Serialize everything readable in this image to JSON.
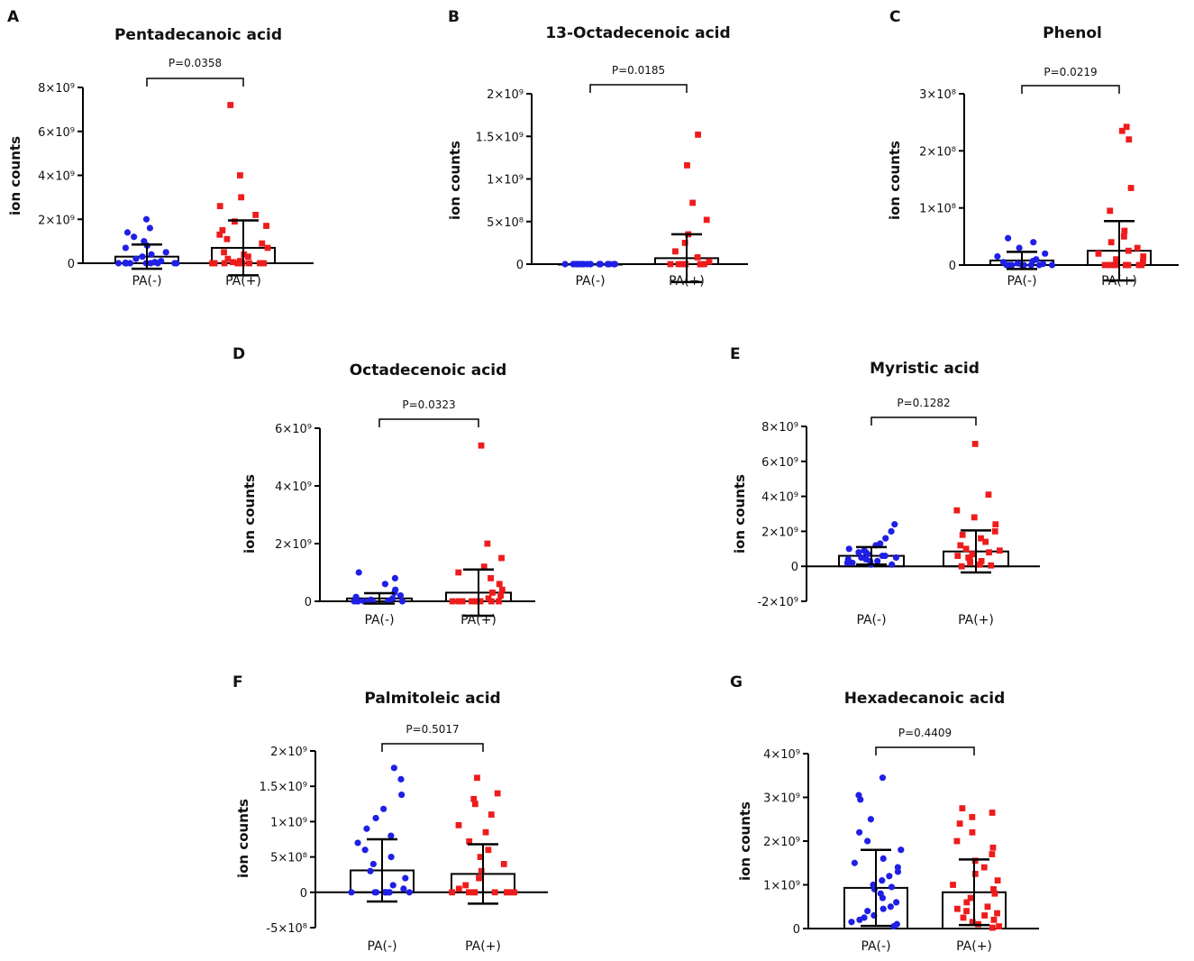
{
  "figure_title": "",
  "ion_unit_label": "ion counts",
  "colors": {
    "neg": "#1f1fe6",
    "pos": "#ee1c1c",
    "axis": "#000000"
  },
  "chart_data": [
    {
      "panel": "A",
      "type": "scatter",
      "title": "Pentadecanoic acid",
      "p_value": "P=0.0358",
      "ylabel": "ion counts",
      "categories": [
        "PA(-)",
        "PA(+)"
      ],
      "ylim": [
        0,
        8000000000.0
      ],
      "yticks": [
        {
          "value": 0,
          "label": "0"
        },
        {
          "value": 2000000000.0,
          "label": "2×10⁹"
        },
        {
          "value": 4000000000.0,
          "label": "4×10⁹"
        },
        {
          "value": 6000000000.0,
          "label": "6×10⁹"
        },
        {
          "value": 8000000000.0,
          "label": "8×10⁹"
        }
      ],
      "series": [
        {
          "name": "PA(-)",
          "mean": 300000000.0,
          "sd": 550000000.0,
          "values": [
            2000000000.0,
            1600000000.0,
            1400000000.0,
            1200000000.0,
            1000000000.0,
            800000000.0,
            700000000.0,
            500000000.0,
            400000000.0,
            300000000.0,
            200000000.0,
            100000000.0,
            50000000.0,
            20000000.0,
            0,
            0,
            0,
            0,
            0,
            0,
            0,
            0,
            0,
            0
          ]
        },
        {
          "name": "PA(+)",
          "mean": 700000000.0,
          "sd": 1250000000.0,
          "values": [
            7200000000.0,
            4000000000.0,
            3000000000.0,
            2600000000.0,
            2200000000.0,
            1900000000.0,
            1700000000.0,
            1500000000.0,
            1300000000.0,
            1100000000.0,
            900000000.0,
            700000000.0,
            500000000.0,
            400000000.0,
            300000000.0,
            200000000.0,
            100000000.0,
            50000000.0,
            0,
            0,
            0,
            0,
            0,
            0,
            0,
            0,
            0,
            0
          ]
        }
      ]
    },
    {
      "panel": "B",
      "type": "scatter",
      "title": "13-Octadecenoic acid",
      "p_value": "P=0.0185",
      "ylabel": "ion counts",
      "categories": [
        "PA(-)",
        "PA(+)"
      ],
      "ylim": [
        0,
        2000000000.0
      ],
      "yticks": [
        {
          "value": 0,
          "label": "0"
        },
        {
          "value": 500000000.0,
          "label": "5×10⁸"
        },
        {
          "value": 1000000000.0,
          "label": "1×10⁹"
        },
        {
          "value": 1500000000.0,
          "label": "1.5×10⁹"
        },
        {
          "value": 2000000000.0,
          "label": "2×10⁹"
        }
      ],
      "series": [
        {
          "name": "PA(-)",
          "mean": 0,
          "sd": 0,
          "values": [
            0,
            0,
            0,
            0,
            0,
            0,
            0,
            0,
            0,
            0,
            0,
            0,
            0,
            0,
            0,
            0,
            0,
            0,
            0,
            0
          ]
        },
        {
          "name": "PA(+)",
          "mean": 70000000.0,
          "sd": 280000000.0,
          "values": [
            1520000000.0,
            1160000000.0,
            720000000.0,
            520000000.0,
            350000000.0,
            250000000.0,
            150000000.0,
            80000000.0,
            30000000.0,
            0,
            0,
            0,
            0,
            0,
            0,
            0,
            0,
            0,
            0,
            0
          ]
        }
      ]
    },
    {
      "panel": "C",
      "type": "scatter",
      "title": "Phenol",
      "p_value": "P=0.0219",
      "ylabel": "ion counts",
      "categories": [
        "PA(-)",
        "PA(+)"
      ],
      "ylim": [
        0,
        300000000.0
      ],
      "yticks": [
        {
          "value": 0,
          "label": "0"
        },
        {
          "value": 100000000.0,
          "label": "1×10⁸"
        },
        {
          "value": 200000000.0,
          "label": "2×10⁸"
        },
        {
          "value": 300000000.0,
          "label": "3×10⁸"
        }
      ],
      "series": [
        {
          "name": "PA(-)",
          "mean": 8000000.0,
          "sd": 15000000.0,
          "values": [
            47000000.0,
            40000000.0,
            30000000.0,
            20000000.0,
            15000000.0,
            10000000.0,
            7000000.0,
            5000000.0,
            3000000.0,
            2000000.0,
            0,
            0,
            0,
            0,
            0,
            0,
            0,
            0,
            0,
            0
          ]
        },
        {
          "name": "PA(+)",
          "mean": 25000000.0,
          "sd": 52000000.0,
          "values": [
            242000000.0,
            235000000.0,
            220000000.0,
            135000000.0,
            95000000.0,
            60000000.0,
            50000000.0,
            40000000.0,
            30000000.0,
            25000000.0,
            20000000.0,
            15000000.0,
            10000000.0,
            5000000.0,
            0,
            0,
            0,
            0,
            0,
            0,
            0,
            0
          ]
        }
      ]
    },
    {
      "panel": "D",
      "type": "scatter",
      "title": "Octadecenoic acid",
      "p_value": "P=0.0323",
      "ylabel": "ion counts",
      "categories": [
        "PA(-)",
        "PA(+)"
      ],
      "ylim": [
        0,
        6000000000.0
      ],
      "yticks": [
        {
          "value": 0,
          "label": "0"
        },
        {
          "value": 2000000000.0,
          "label": "2×10⁹"
        },
        {
          "value": 4000000000.0,
          "label": "4×10⁹"
        },
        {
          "value": 6000000000.0,
          "label": "6×10⁹"
        }
      ],
      "series": [
        {
          "name": "PA(-)",
          "mean": 100000000.0,
          "sd": 180000000.0,
          "values": [
            1000000000.0,
            800000000.0,
            600000000.0,
            400000000.0,
            300000000.0,
            200000000.0,
            150000000.0,
            100000000.0,
            50000000.0,
            0,
            0,
            0,
            0,
            0,
            0,
            0,
            0,
            0
          ]
        },
        {
          "name": "PA(+)",
          "mean": 300000000.0,
          "sd": 800000000.0,
          "values": [
            5400000000.0,
            2000000000.0,
            1500000000.0,
            1200000000.0,
            1000000000.0,
            800000000.0,
            600000000.0,
            400000000.0,
            300000000.0,
            200000000.0,
            100000000.0,
            0,
            0,
            0,
            0,
            0,
            0,
            0,
            0,
            0
          ]
        }
      ]
    },
    {
      "panel": "E",
      "type": "scatter",
      "title": "Myristic acid",
      "p_value": "P=0.1282",
      "ylabel": "ion counts",
      "categories": [
        "PA(-)",
        "PA(+)"
      ],
      "ylim": [
        -2000000000.0,
        8000000000.0
      ],
      "yticks": [
        {
          "value": -2000000000.0,
          "label": "-2×10⁹"
        },
        {
          "value": 0,
          "label": "0"
        },
        {
          "value": 2000000000.0,
          "label": "2×10⁹"
        },
        {
          "value": 4000000000.0,
          "label": "4×10⁹"
        },
        {
          "value": 6000000000.0,
          "label": "6×10⁹"
        },
        {
          "value": 8000000000.0,
          "label": "8×10⁹"
        }
      ],
      "series": [
        {
          "name": "PA(-)",
          "mean": 600000000.0,
          "sd": 500000000.0,
          "values": [
            2400000000.0,
            2000000000.0,
            1600000000.0,
            1300000000.0,
            1200000000.0,
            1000000000.0,
            900000000.0,
            800000000.0,
            800000000.0,
            700000000.0,
            600000000.0,
            600000000.0,
            500000000.0,
            500000000.0,
            400000000.0,
            400000000.0,
            300000000.0,
            300000000.0,
            200000000.0,
            200000000.0,
            100000000.0,
            100000000.0
          ]
        },
        {
          "name": "PA(+)",
          "mean": 850000000.0,
          "sd": 1200000000.0,
          "values": [
            7000000000.0,
            4100000000.0,
            3200000000.0,
            2800000000.0,
            2400000000.0,
            2000000000.0,
            1800000000.0,
            1600000000.0,
            1400000000.0,
            1200000000.0,
            1000000000.0,
            900000000.0,
            800000000.0,
            700000000.0,
            600000000.0,
            500000000.0,
            400000000.0,
            300000000.0,
            200000000.0,
            100000000.0,
            50000000.0,
            0
          ]
        }
      ]
    },
    {
      "panel": "F",
      "type": "scatter",
      "title": "Palmitoleic acid",
      "p_value": "P=0.5017",
      "ylabel": "ion counts",
      "categories": [
        "PA(-)",
        "PA(+)"
      ],
      "ylim": [
        -500000000.0,
        2000000000.0
      ],
      "yticks": [
        {
          "value": -500000000.0,
          "label": "-5×10⁸"
        },
        {
          "value": 0,
          "label": "0"
        },
        {
          "value": 500000000.0,
          "label": "5×10⁸"
        },
        {
          "value": 1000000000.0,
          "label": "1×10⁹"
        },
        {
          "value": 1500000000.0,
          "label": "1.5×10⁹"
        },
        {
          "value": 2000000000.0,
          "label": "2×10⁹"
        }
      ],
      "series": [
        {
          "name": "PA(-)",
          "mean": 310000000.0,
          "sd": 440000000.0,
          "values": [
            1760000000.0,
            1600000000.0,
            1380000000.0,
            1180000000.0,
            1050000000.0,
            900000000.0,
            800000000.0,
            700000000.0,
            600000000.0,
            500000000.0,
            400000000.0,
            300000000.0,
            200000000.0,
            100000000.0,
            50000000.0,
            0,
            0,
            0,
            0,
            0,
            0,
            0,
            0,
            0
          ]
        },
        {
          "name": "PA(+)",
          "mean": 260000000.0,
          "sd": 420000000.0,
          "values": [
            1620000000.0,
            1400000000.0,
            1320000000.0,
            1250000000.0,
            1100000000.0,
            950000000.0,
            850000000.0,
            720000000.0,
            600000000.0,
            500000000.0,
            400000000.0,
            300000000.0,
            200000000.0,
            100000000.0,
            50000000.0,
            0,
            0,
            0,
            0,
            0,
            0,
            0,
            0,
            0
          ]
        }
      ]
    },
    {
      "panel": "G",
      "type": "scatter",
      "title": "Hexadecanoic acid",
      "p_value": "P=0.4409",
      "ylabel": "ion counts",
      "categories": [
        "PA(-)",
        "PA(+)"
      ],
      "ylim": [
        0,
        4000000000.0
      ],
      "yticks": [
        {
          "value": 0,
          "label": "0"
        },
        {
          "value": 1000000000.0,
          "label": "1×10⁹"
        },
        {
          "value": 2000000000.0,
          "label": "2×10⁹"
        },
        {
          "value": 3000000000.0,
          "label": "3×10⁹"
        },
        {
          "value": 4000000000.0,
          "label": "4×10⁹"
        }
      ],
      "series": [
        {
          "name": "PA(-)",
          "mean": 930000000.0,
          "sd": 870000000.0,
          "values": [
            3450000000.0,
            3050000000.0,
            2950000000.0,
            2500000000.0,
            2200000000.0,
            2000000000.0,
            1800000000.0,
            1600000000.0,
            1500000000.0,
            1400000000.0,
            1300000000.0,
            1200000000.0,
            1100000000.0,
            1000000000.0,
            950000000.0,
            900000000.0,
            800000000.0,
            700000000.0,
            600000000.0,
            500000000.0,
            450000000.0,
            400000000.0,
            300000000.0,
            250000000.0,
            200000000.0,
            150000000.0,
            100000000.0,
            50000000.0
          ]
        },
        {
          "name": "PA(+)",
          "mean": 830000000.0,
          "sd": 750000000.0,
          "values": [
            2750000000.0,
            2650000000.0,
            2550000000.0,
            2400000000.0,
            2200000000.0,
            2000000000.0,
            1850000000.0,
            1700000000.0,
            1550000000.0,
            1400000000.0,
            1250000000.0,
            1100000000.0,
            1000000000.0,
            900000000.0,
            800000000.0,
            700000000.0,
            600000000.0,
            500000000.0,
            450000000.0,
            400000000.0,
            350000000.0,
            300000000.0,
            250000000.0,
            200000000.0,
            150000000.0,
            100000000.0,
            50000000.0,
            20000000.0
          ]
        }
      ]
    }
  ]
}
